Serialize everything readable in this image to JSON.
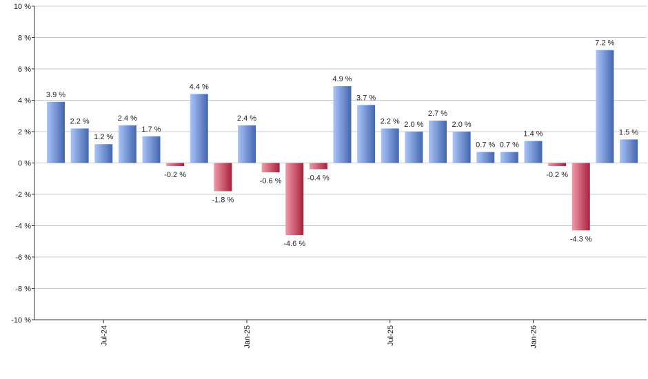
{
  "chart_data": {
    "type": "bar",
    "title": "",
    "xlabel": "",
    "ylabel": "",
    "ylim": [
      -10,
      10
    ],
    "ytick_step": 2,
    "ytick_suffix": " %",
    "grid": true,
    "legend": "none",
    "x_ticks": [
      {
        "label": "Jul-24",
        "index": 2
      },
      {
        "label": "Jan-25",
        "index": 8
      },
      {
        "label": "Jul-25",
        "index": 14
      },
      {
        "label": "Jan-26",
        "index": 20
      }
    ],
    "values": [
      3.9,
      2.2,
      1.2,
      2.4,
      1.7,
      -0.2,
      4.4,
      -1.8,
      2.4,
      -0.6,
      -4.6,
      -0.4,
      4.9,
      3.7,
      2.2,
      2.0,
      2.7,
      2.0,
      0.7,
      0.7,
      1.4,
      -0.2,
      -4.3,
      7.2,
      1.5
    ],
    "labels": [
      "3.9 %",
      "2.2 %",
      "1.2 %",
      "2.4 %",
      "1.7 %",
      "-0.2 %",
      "4.4 %",
      "-1.8 %",
      "2.4 %",
      "-0.6 %",
      "-4.6 %",
      "-0.4 %",
      "4.9 %",
      "3.7 %",
      "2.2 %",
      "2.0 %",
      "2.7 %",
      "2.0 %",
      "0.7 %",
      "0.7 %",
      "1.4 %",
      "-0.2 %",
      "-4.3 %",
      "7.2 %",
      "1.5 %"
    ],
    "colors": {
      "positive_light": "#aac4f6",
      "positive_dark": "#4466b0",
      "negative_light": "#f09aa8",
      "negative_dark": "#a8203c",
      "grid": "#c8c8c8",
      "axis": "#333333"
    }
  }
}
